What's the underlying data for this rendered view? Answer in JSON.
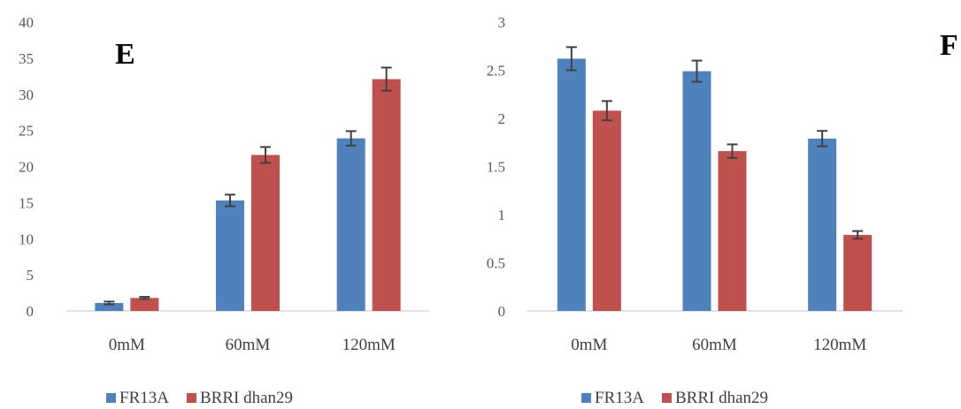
{
  "colors": {
    "FR13A": "#4f81bd",
    "BRRI dhan29": "#c0504d",
    "axis": "#d9d9d9",
    "error": "#404040"
  },
  "chart_data": [
    {
      "type": "bar",
      "panel_label": "E",
      "categories": [
        "0mM",
        "60mM",
        "120mM"
      ],
      "series": [
        {
          "name": "FR13A",
          "values": [
            1.1,
            15.3,
            23.9
          ],
          "errors": [
            0.2,
            0.8,
            1.0
          ]
        },
        {
          "name": "BRRI dhan29",
          "values": [
            1.8,
            21.6,
            32.1
          ],
          "errors": [
            0.15,
            1.1,
            1.6
          ]
        }
      ],
      "yticks": [
        "0",
        "5",
        "10",
        "15",
        "20",
        "25",
        "30",
        "35",
        "40"
      ],
      "ylim": [
        0,
        40
      ],
      "grid": false,
      "legend": "bottom"
    },
    {
      "type": "bar",
      "panel_label": "F",
      "categories": [
        "0mM",
        "60mM",
        "120mM"
      ],
      "series": [
        {
          "name": "FR13A",
          "values": [
            2.62,
            2.49,
            1.79
          ],
          "errors": [
            0.12,
            0.11,
            0.08
          ]
        },
        {
          "name": "BRRI dhan29",
          "values": [
            2.08,
            1.66,
            0.79
          ],
          "errors": [
            0.1,
            0.07,
            0.04
          ]
        }
      ],
      "yticks": [
        "0",
        "0.5",
        "1",
        "1.5",
        "2",
        "2.5",
        "3"
      ],
      "ylim": [
        0,
        3
      ],
      "grid": false,
      "legend": "bottom"
    }
  ]
}
